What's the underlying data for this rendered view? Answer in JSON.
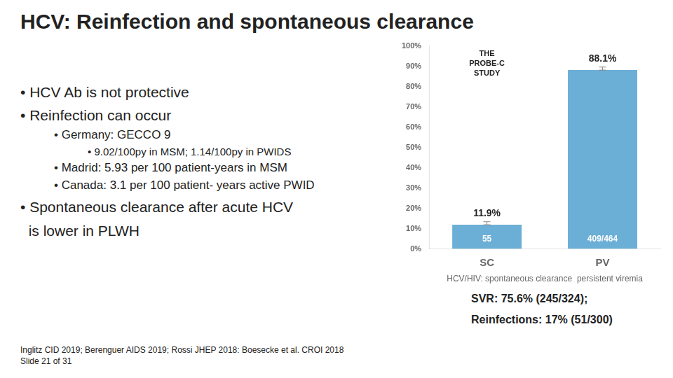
{
  "chart_data": {
    "type": "bar",
    "title": "HCV: Reinfection and spontaneous clearance",
    "bullets": [
      "• HCV Ab is not protective",
      "• Reinfection can occur",
      [
        "• Germany: GECCO 9",
        [
          "• 9.02/100py in MSM; 1.14/100py in PWIDS"
        ],
        "• Madrid: 5.93 per 100 patient-years in MSM",
        "• Canada: 3.1 per 100 patient- years active PWID"
      ],
      "• Spontaneous clearance after acute HCV",
      "  is lower in PLWH"
    ],
    "categories": [
      "SC",
      "PV"
    ],
    "values": [
      11.9,
      88.1
    ],
    "value_labels": [
      "11.9%",
      "88.1%"
    ],
    "data_labels": true,
    "error_minus": [
      0,
      0
    ],
    "error_plus": [
      1.5,
      1.5
    ],
    "bar_notes": [
      "55",
      "409/464"
    ],
    "annotation": "THE\nPROBE-C\nSTUDY",
    "color": "#6BAED6",
    "x_label": "HCV/HIV: spontaneous clearance  persistent viremia",
    "ylim": [
      0,
      100
    ],
    "yticks": [
      {
        "value": 0,
        "label": "0%"
      },
      {
        "value": 10,
        "label": "10%"
      },
      {
        "value": 20,
        "label": "20%"
      },
      {
        "value": 30,
        "label": "30%"
      },
      {
        "value": 40,
        "label": "40%"
      },
      {
        "value": 50,
        "label": "50%"
      },
      {
        "value": 60,
        "label": "60%"
      },
      {
        "value": 70,
        "label": "70%"
      },
      {
        "value": 80,
        "label": "80%"
      },
      {
        "value": 90,
        "label": "90%"
      },
      {
        "value": 100,
        "label": "100%"
      }
    ],
    "grid": false,
    "notes": [
      "SVR: 75.6% (245/324);",
      "Reinfections: 17% (51/300)"
    ],
    "footer": "Inglitz CID 2019; Berenguer AIDS 2019; Rossi JHEP 2018: Boesecke et al. CROI 2018\nSlide 21 of 31"
  }
}
